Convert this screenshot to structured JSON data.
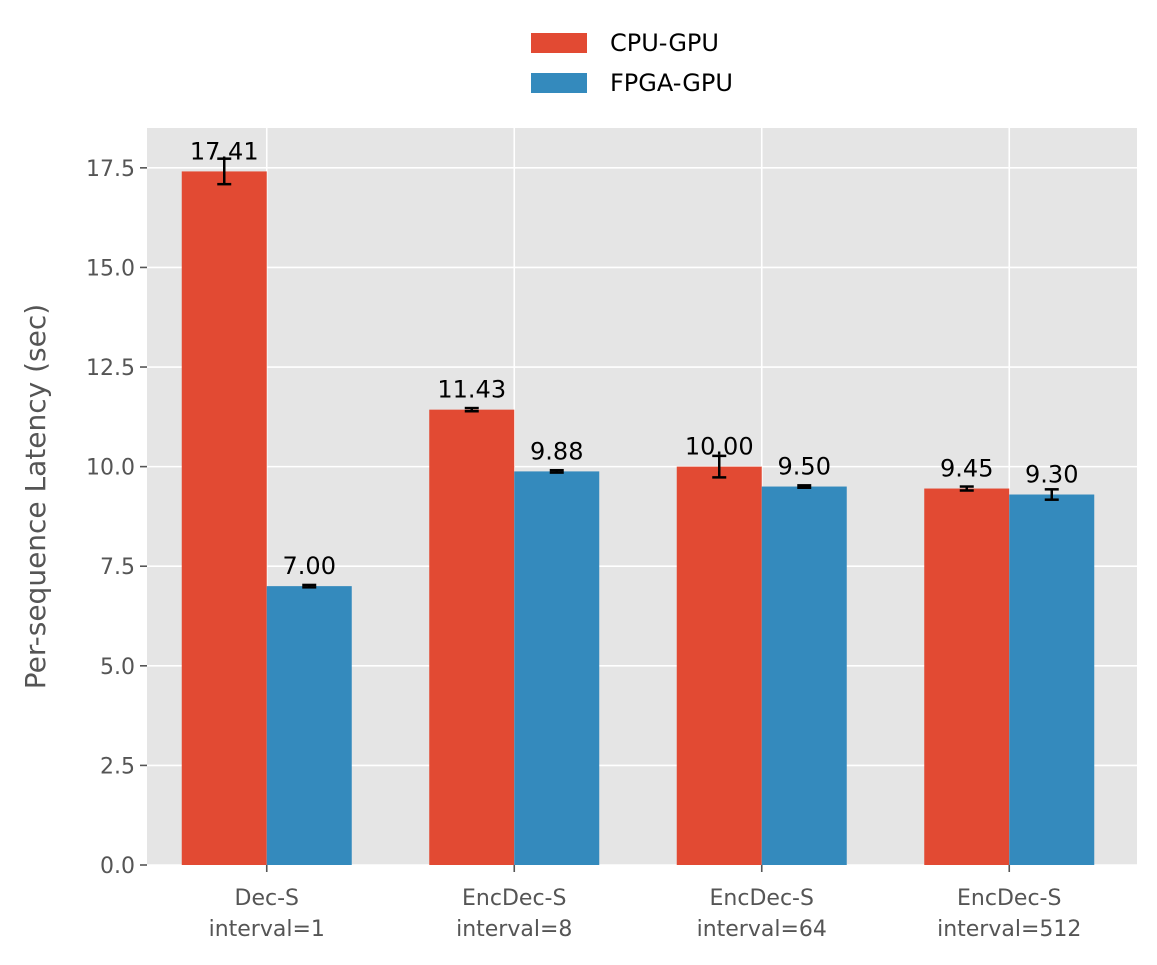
{
  "colors": {
    "plot_background": "#e5e5e5",
    "grid": "#ffffff",
    "cpu_gpu": "#e24a33",
    "fpga_gpu": "#348abd",
    "tick_text": "#555555",
    "error_bar": "#000000"
  },
  "chart_data": {
    "type": "bar",
    "title": "",
    "xlabel": "",
    "ylabel": "Per-sequence Latency (sec)",
    "ylim": [
      0,
      18.5
    ],
    "yticks": [
      "0.0",
      "2.5",
      "5.0",
      "7.5",
      "10.0",
      "12.5",
      "15.0",
      "17.5"
    ],
    "grid": true,
    "legend_position": "top-center",
    "categories": [
      [
        "Dec-S",
        "interval=1"
      ],
      [
        "EncDec-S",
        "interval=8"
      ],
      [
        "EncDec-S",
        "interval=64"
      ],
      [
        "EncDec-S",
        "interval=512"
      ]
    ],
    "series": [
      {
        "name": "CPU-GPU",
        "color": "#e24a33",
        "values": [
          17.41,
          11.43,
          10.0,
          9.45
        ],
        "labels": [
          "17.41",
          "11.43",
          "10.00",
          "9.45"
        ],
        "errors": [
          0.32,
          0.04,
          0.27,
          0.05
        ]
      },
      {
        "name": "FPGA-GPU",
        "color": "#348abd",
        "values": [
          7.0,
          9.88,
          9.5,
          9.3
        ],
        "labels": [
          "7.00",
          "9.88",
          "9.50",
          "9.30"
        ],
        "errors": [
          0.03,
          0.03,
          0.03,
          0.13
        ]
      }
    ]
  }
}
